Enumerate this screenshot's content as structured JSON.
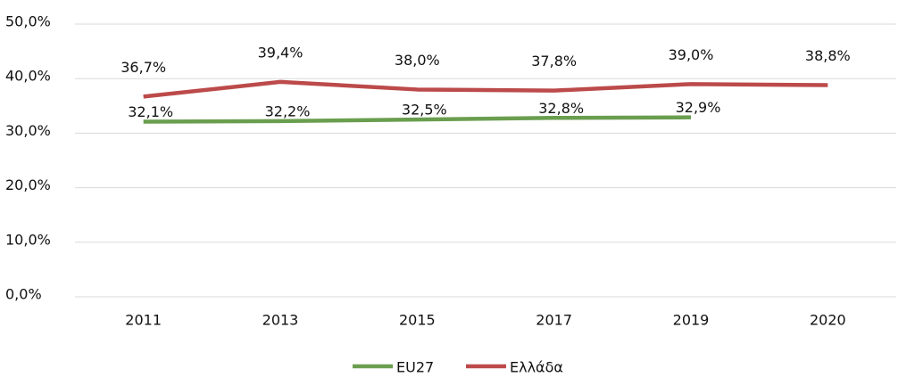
{
  "chart_data": {
    "type": "line",
    "categories": [
      "2011",
      "2013",
      "2015",
      "2017",
      "2019",
      "2020"
    ],
    "series": [
      {
        "name": "EU27",
        "color": "#6a9e4f",
        "values": [
          32.1,
          32.2,
          32.5,
          32.8,
          32.9,
          null
        ],
        "value_labels": [
          "32,1%",
          "32,2%",
          "32,5%",
          "32,8%",
          "32,9%",
          null
        ]
      },
      {
        "name": "Ελλάδα",
        "color": "#bc4a4a",
        "values": [
          36.7,
          39.4,
          38.0,
          37.8,
          39.0,
          38.8
        ],
        "value_labels": [
          "36,7%",
          "39,4%",
          "38,0%",
          "37,8%",
          "39,0%",
          "38,8%"
        ]
      }
    ],
    "ylim": [
      0,
      50
    ],
    "yticks": [
      {
        "value": 0,
        "label": "0,0%"
      },
      {
        "value": 10,
        "label": "10,0%"
      },
      {
        "value": 20,
        "label": "20,0%"
      },
      {
        "value": 30,
        "label": "30,0%"
      },
      {
        "value": 40,
        "label": "40,0%"
      },
      {
        "value": 50,
        "label": "50,0%"
      }
    ],
    "grid": true,
    "legend": "bottom"
  }
}
